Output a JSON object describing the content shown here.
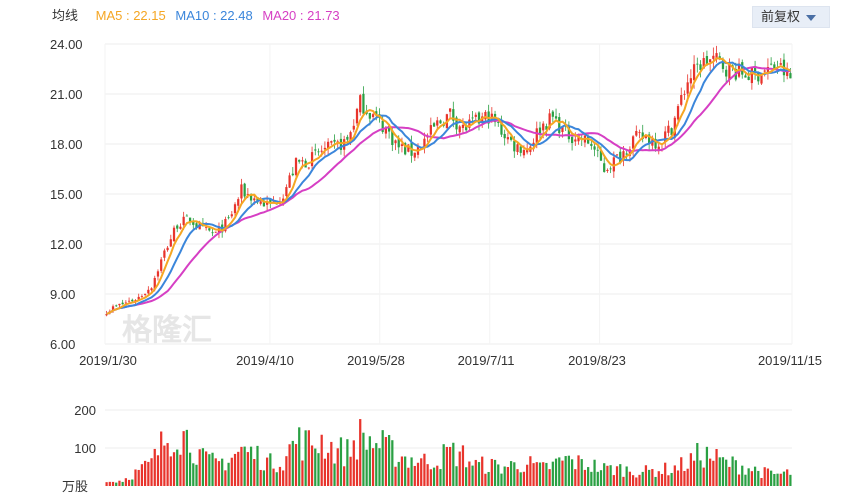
{
  "legend": {
    "title": "均线",
    "ma5": "MA5 : 22.15",
    "ma10": "MA10 : 22.48",
    "ma20": "MA20 : 21.73"
  },
  "adjust_button": {
    "label": "前复权"
  },
  "watermark": "格隆汇",
  "colors": {
    "up": "#e8342c",
    "down": "#2aa043",
    "ma5": "#f5a623",
    "ma10": "#3b86db",
    "ma20": "#d63fc4",
    "grid": "#eeeeee"
  },
  "chart_data": [
    {
      "type": "candlestick",
      "title": "均线",
      "ylim": [
        6.0,
        24.0
      ],
      "y_ticks": [
        "6.00",
        "9.00",
        "12.00",
        "15.00",
        "18.00",
        "21.00",
        "24.00"
      ],
      "x_ticks": [
        "2019/1/30",
        "2019/4/10",
        "2019/5/28",
        "2019/7/11",
        "2019/8/23",
        "2019/11/15"
      ],
      "trend_anchors": {
        "x": [
          0,
          5,
          10,
          14,
          18,
          22,
          26,
          30,
          34,
          38,
          42,
          47,
          51,
          55,
          59,
          63,
          67,
          71,
          75,
          79,
          83,
          87,
          91,
          95,
          99,
          103,
          107,
          111,
          115,
          119,
          123,
          127,
          131,
          135,
          139,
          143,
          147,
          151,
          155,
          160,
          164,
          168,
          172,
          176,
          181,
          185,
          189,
          193,
          197,
          201,
          205,
          209,
          213
        ],
        "close": [
          8.0,
          8.4,
          8.8,
          9.5,
          11.5,
          13.2,
          13.5,
          12.8,
          12.6,
          13.4,
          15.2,
          14.6,
          14.3,
          15.0,
          16.8,
          17.0,
          17.6,
          17.8,
          18.2,
          20.5,
          19.7,
          18.9,
          17.8,
          17.5,
          18.2,
          19.2,
          19.8,
          18.9,
          19.3,
          19.7,
          18.8,
          17.9,
          17.7,
          19.0,
          19.6,
          18.6,
          18.4,
          18.0,
          16.5,
          17.3,
          18.3,
          18.4,
          18.1,
          19.0,
          21.8,
          22.8,
          23.1,
          22.6,
          22.3,
          22.1,
          22.4,
          22.7,
          21.9
        ]
      },
      "series": [
        {
          "name": "MA5",
          "last": 22.15
        },
        {
          "name": "MA10",
          "last": 22.48
        },
        {
          "name": "MA20",
          "last": 21.73
        }
      ]
    },
    {
      "type": "bar",
      "ylabel": "万股",
      "ylim": [
        0,
        200
      ],
      "y_ticks": [
        "100",
        "200"
      ],
      "volume_anchors": {
        "x": [
          0,
          5,
          10,
          14,
          18,
          22,
          26,
          30,
          34,
          38,
          42,
          47,
          51,
          55,
          59,
          63,
          67,
          71,
          75,
          79,
          83,
          87,
          91,
          95,
          99,
          103,
          107,
          111,
          115,
          119,
          123,
          127,
          131,
          135,
          139,
          143,
          147,
          151,
          155,
          160,
          164,
          168,
          172,
          176,
          181,
          185,
          189,
          193,
          197,
          201,
          205,
          209,
          213
        ],
        "volume": [
          10,
          15,
          40,
          60,
          120,
          150,
          120,
          70,
          60,
          70,
          95,
          80,
          60,
          70,
          120,
          110,
          120,
          95,
          90,
          130,
          115,
          100,
          80,
          70,
          65,
          70,
          90,
          80,
          55,
          55,
          50,
          55,
          60,
          45,
          55,
          70,
          60,
          55,
          45,
          45,
          40,
          38,
          42,
          45,
          60,
          85,
          75,
          60,
          55,
          45,
          35,
          30,
          35
        ]
      }
    }
  ]
}
